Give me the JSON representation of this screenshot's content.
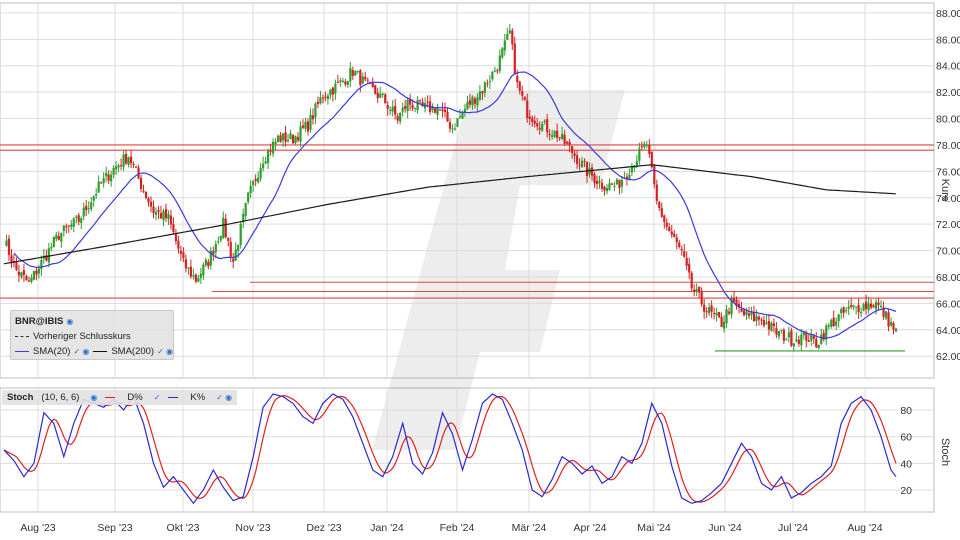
{
  "chart_data": [
    {
      "type": "candlestick",
      "symbol": "BNR@IBIS",
      "y_axis_label": "Kurs",
      "y_ticks": [
        "62.00",
        "64.00",
        "66.00",
        "68.00",
        "70.00",
        "72.00",
        "74.00",
        "76.00",
        "78.00",
        "80.00",
        "82.00",
        "84.00",
        "86.00",
        "88.00"
      ],
      "ylim": [
        60.5,
        88.6
      ],
      "x_ticks": [
        "Aug '23",
        "Sep '23",
        "Okt '23",
        "Nov '23",
        "Dez '23",
        "Jan '24",
        "Feb '24",
        "Mär '24",
        "Apr '24",
        "Mai '24",
        "Jun '24",
        "Jul '24",
        "Aug '24"
      ],
      "close_anchors": [
        [
          0,
          70.8
        ],
        [
          5,
          68.5
        ],
        [
          10,
          67.5
        ],
        [
          16,
          69.4
        ],
        [
          22,
          71.2
        ],
        [
          30,
          72.3
        ],
        [
          38,
          74.8
        ],
        [
          44,
          76.2
        ],
        [
          50,
          77.2
        ],
        [
          55,
          75.0
        ],
        [
          60,
          73.0
        ],
        [
          66,
          72.4
        ],
        [
          72,
          69.0
        ],
        [
          77,
          67.8
        ],
        [
          82,
          69.2
        ],
        [
          88,
          72.0
        ],
        [
          92,
          69.2
        ],
        [
          98,
          74.0
        ],
        [
          104,
          77.0
        ],
        [
          110,
          78.5
        ],
        [
          116,
          78.5
        ],
        [
          122,
          79.5
        ],
        [
          128,
          81.8
        ],
        [
          134,
          82.5
        ],
        [
          140,
          83.6
        ],
        [
          146,
          82.4
        ],
        [
          152,
          81.5
        ],
        [
          158,
          80.0
        ],
        [
          162,
          81.2
        ],
        [
          168,
          80.8
        ],
        [
          174,
          80.8
        ],
        [
          180,
          79.3
        ],
        [
          186,
          81.0
        ],
        [
          192,
          82.2
        ],
        [
          198,
          84.0
        ],
        [
          203,
          86.5
        ],
        [
          206,
          82.5
        ],
        [
          210,
          80.5
        ],
        [
          216,
          79.5
        ],
        [
          222,
          78.8
        ],
        [
          228,
          77.5
        ],
        [
          234,
          76.0
        ],
        [
          240,
          75.0
        ],
        [
          246,
          74.9
        ],
        [
          252,
          76.5
        ],
        [
          258,
          78.1
        ],
        [
          262,
          73.6
        ],
        [
          266,
          71.8
        ],
        [
          272,
          69.8
        ],
        [
          276,
          67.2
        ],
        [
          282,
          65.5
        ],
        [
          288,
          64.5
        ],
        [
          292,
          66.0
        ],
        [
          298,
          65.0
        ],
        [
          304,
          64.8
        ],
        [
          310,
          63.8
        ],
        [
          316,
          63.3
        ],
        [
          322,
          63.5
        ],
        [
          326,
          63.0
        ],
        [
          332,
          64.5
        ],
        [
          338,
          65.4
        ],
        [
          344,
          65.8
        ],
        [
          350,
          66.0
        ],
        [
          354,
          65.0
        ],
        [
          358,
          63.8
        ]
      ],
      "series": [
        {
          "name": "SMA(20)",
          "color": "#3a3adf"
        },
        {
          "name": "SMA(200)",
          "color": "#1a1a1a"
        }
      ],
      "legend": {
        "title": "BNR@IBIS",
        "entries": [
          "Vorheriger Schlusskurs",
          "SMA(20)",
          "SMA(200)"
        ],
        "placement": "bottom-left"
      },
      "reference_lines_red": [
        78.0,
        77.6,
        67.6,
        66.9,
        66.4
      ],
      "support_line_green": 62.4,
      "candle_colors": {
        "up": "#2e9e2e",
        "down": "#d42222"
      }
    },
    {
      "type": "line",
      "title": "Stoch",
      "params": "(10, 6, 6)",
      "y_axis_label": "Stoch",
      "y_ticks": [
        "20",
        "40",
        "60",
        "80"
      ],
      "ylim": [
        5,
        95
      ],
      "series": [
        {
          "name": "D%",
          "color": "#e02020"
        },
        {
          "name": "K%",
          "color": "#2a2ad0"
        }
      ],
      "k_anchors": [
        [
          0,
          50
        ],
        [
          4,
          42
        ],
        [
          8,
          30
        ],
        [
          12,
          40
        ],
        [
          16,
          78
        ],
        [
          20,
          70
        ],
        [
          24,
          45
        ],
        [
          28,
          70
        ],
        [
          32,
          88
        ],
        [
          36,
          85
        ],
        [
          40,
          82
        ],
        [
          44,
          88
        ],
        [
          48,
          80
        ],
        [
          52,
          90
        ],
        [
          56,
          70
        ],
        [
          60,
          40
        ],
        [
          64,
          22
        ],
        [
          68,
          30
        ],
        [
          72,
          20
        ],
        [
          76,
          10
        ],
        [
          80,
          20
        ],
        [
          84,
          35
        ],
        [
          88,
          22
        ],
        [
          92,
          12
        ],
        [
          96,
          15
        ],
        [
          100,
          45
        ],
        [
          104,
          82
        ],
        [
          108,
          92
        ],
        [
          112,
          90
        ],
        [
          116,
          85
        ],
        [
          120,
          75
        ],
        [
          124,
          70
        ],
        [
          128,
          85
        ],
        [
          132,
          92
        ],
        [
          136,
          88
        ],
        [
          140,
          75
        ],
        [
          144,
          55
        ],
        [
          148,
          35
        ],
        [
          152,
          30
        ],
        [
          156,
          45
        ],
        [
          160,
          70
        ],
        [
          164,
          40
        ],
        [
          168,
          32
        ],
        [
          172,
          48
        ],
        [
          176,
          78
        ],
        [
          180,
          62
        ],
        [
          184,
          35
        ],
        [
          188,
          58
        ],
        [
          192,
          85
        ],
        [
          196,
          92
        ],
        [
          200,
          88
        ],
        [
          204,
          70
        ],
        [
          208,
          50
        ],
        [
          212,
          20
        ],
        [
          216,
          15
        ],
        [
          220,
          28
        ],
        [
          224,
          45
        ],
        [
          228,
          40
        ],
        [
          232,
          32
        ],
        [
          236,
          38
        ],
        [
          240,
          25
        ],
        [
          244,
          30
        ],
        [
          248,
          45
        ],
        [
          252,
          40
        ],
        [
          256,
          55
        ],
        [
          260,
          85
        ],
        [
          264,
          70
        ],
        [
          268,
          38
        ],
        [
          272,
          14
        ],
        [
          276,
          10
        ],
        [
          280,
          12
        ],
        [
          284,
          18
        ],
        [
          288,
          25
        ],
        [
          292,
          40
        ],
        [
          296,
          55
        ],
        [
          300,
          45
        ],
        [
          304,
          25
        ],
        [
          308,
          20
        ],
        [
          312,
          30
        ],
        [
          316,
          14
        ],
        [
          320,
          18
        ],
        [
          324,
          25
        ],
        [
          328,
          30
        ],
        [
          332,
          38
        ],
        [
          336,
          70
        ],
        [
          340,
          85
        ],
        [
          344,
          90
        ],
        [
          348,
          80
        ],
        [
          352,
          60
        ],
        [
          356,
          35
        ],
        [
          358,
          30
        ]
      ]
    }
  ]
}
